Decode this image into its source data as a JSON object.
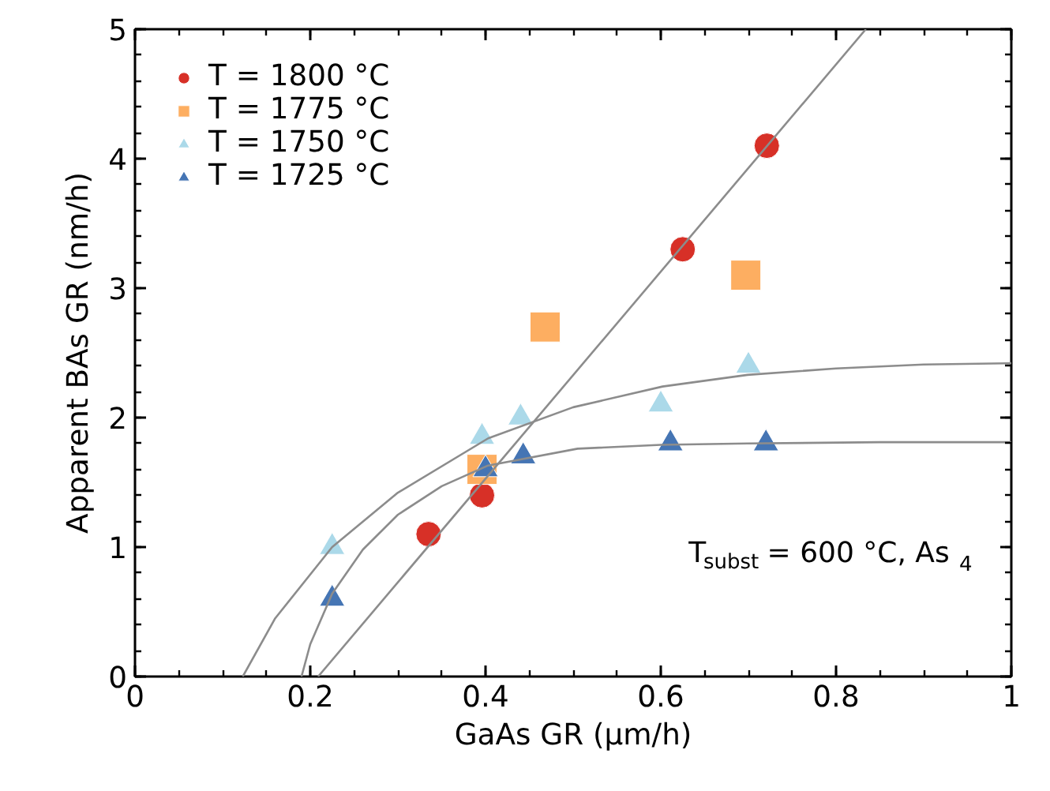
{
  "chart_data": {
    "type": "scatter",
    "xlabel": "GaAs GR (µm/h)",
    "ylabel": "Apparent BAs GR (nm/h)",
    "xlim": [
      0,
      1
    ],
    "ylim": [
      0,
      5
    ],
    "xticks": [
      0,
      0.2,
      0.4,
      0.6,
      0.8,
      1
    ],
    "yticks": [
      0,
      1,
      2,
      3,
      4,
      5
    ],
    "grid": false,
    "legend": "top left",
    "annotations": [
      "T$_{subst}$ = 600 °C, As$_{4}$"
    ],
    "series": [
      {
        "name": "T = 1800 °C",
        "marker": "circle",
        "color": "#d73027",
        "x": [
          0.335,
          0.396,
          0.625,
          0.721
        ],
        "values": [
          1.1,
          1.4,
          3.3,
          4.1
        ]
      },
      {
        "name": "T = 1775 °C",
        "marker": "square",
        "color": "#fdae61",
        "x": [
          0.396,
          0.468,
          0.697
        ],
        "values": [
          1.6,
          2.7,
          3.1
        ]
      },
      {
        "name": "T = 1750 °C",
        "marker": "triangle",
        "color": "#abd9e9",
        "x": [
          0.225,
          0.396,
          0.44,
          0.6,
          0.7
        ],
        "values": [
          1.0,
          1.85,
          2.0,
          2.1,
          2.4
        ]
      },
      {
        "name": "T = 1725 °C",
        "marker": "triangle",
        "color": "#4575b4",
        "x": [
          0.225,
          0.4,
          0.443,
          0.611,
          0.72
        ],
        "values": [
          0.6,
          1.6,
          1.7,
          1.8,
          1.8
        ]
      },
      {
        "type": "line",
        "color": "#8c8c8c",
        "x": [
          0.209,
          0.834
        ],
        "values": [
          0,
          5
        ]
      },
      {
        "type": "line",
        "color": "#8c8c8c",
        "x": [
          0.123,
          0.16,
          0.225,
          0.3,
          0.403,
          0.5,
          0.602,
          0.699,
          0.8,
          0.9,
          1.0
        ],
        "values": [
          0,
          0.45,
          1.0,
          1.42,
          1.84,
          2.08,
          2.24,
          2.33,
          2.38,
          2.41,
          2.42
        ]
      },
      {
        "type": "line",
        "color": "#8c8c8c",
        "x": [
          0.19,
          0.2,
          0.225,
          0.26,
          0.3,
          0.35,
          0.403,
          0.505,
          0.6,
          0.699,
          0.85,
          1.0
        ],
        "values": [
          0,
          0.25,
          0.64,
          0.98,
          1.25,
          1.47,
          1.63,
          1.76,
          1.79,
          1.8,
          1.81,
          1.81
        ]
      }
    ]
  }
}
